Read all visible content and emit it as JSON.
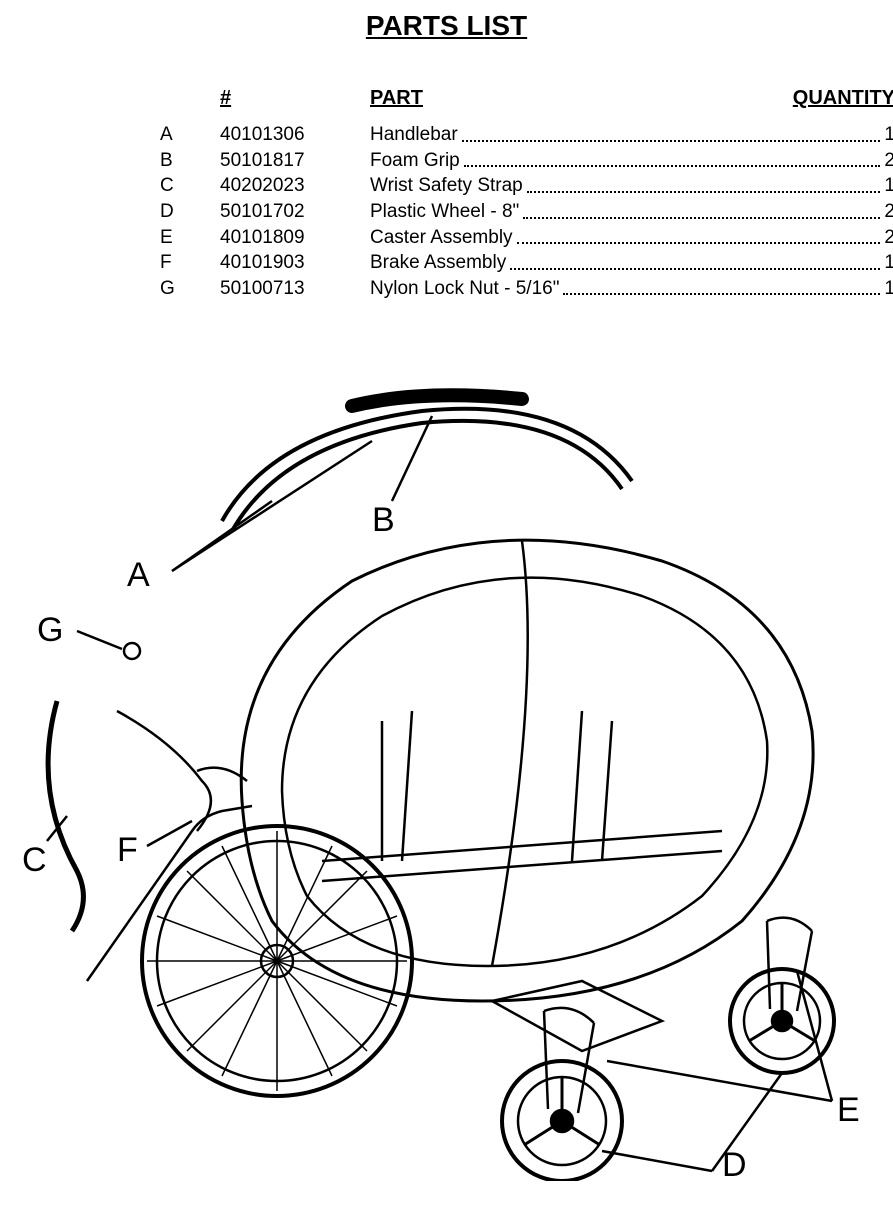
{
  "page": {
    "title": "PARTS LIST",
    "headers": {
      "number": "#",
      "part": "PART",
      "quantity": "QUANTITY"
    },
    "rows": [
      {
        "letter": "A",
        "number": "40101306",
        "part": "Handlebar",
        "qty": "1"
      },
      {
        "letter": "B",
        "number": "50101817",
        "part": "Foam Grip",
        "qty": "2"
      },
      {
        "letter": "C",
        "number": "40202023",
        "part": "Wrist Safety Strap",
        "qty": "1"
      },
      {
        "letter": "D",
        "number": "50101702",
        "part": "Plastic Wheel - 8\"",
        "qty": "2"
      },
      {
        "letter": "E",
        "number": "40101809",
        "part": "Caster Assembly",
        "qty": "2"
      },
      {
        "letter": "F",
        "number": "40101903",
        "part": "Brake Assembly",
        "qty": "1"
      },
      {
        "letter": "G",
        "number": "50100713",
        "part": "Nylon Lock Nut - 5/16\"",
        "qty": "1"
      }
    ]
  },
  "diagram": {
    "type": "exploded-parts-illustration",
    "description": "Line-art exploded view of a child bicycle trailer / stroller with labeled callouts A through G pointing to the corresponding parts.",
    "labels": [
      "A",
      "B",
      "C",
      "D",
      "E",
      "F",
      "G"
    ],
    "label_font_size": 34,
    "stroke_color": "#000000",
    "background_color": "#ffffff",
    "approx_width": 850,
    "approx_height": 820,
    "callouts": [
      {
        "id": "A",
        "points_to": "Handlebar tubes (upper bent bar)"
      },
      {
        "id": "B",
        "points_to": "Foam grip on handlebar center"
      },
      {
        "id": "C",
        "points_to": "Wrist safety strap (left side strap)"
      },
      {
        "id": "D",
        "points_to": "Plastic wheel 8\" (small front wheel)"
      },
      {
        "id": "E",
        "points_to": "Caster assembly (front caster forks)"
      },
      {
        "id": "F",
        "points_to": "Brake assembly near hitch arm"
      },
      {
        "id": "G",
        "points_to": "Nylon lock nut 5/16\" (small nut near top left)"
      }
    ]
  }
}
